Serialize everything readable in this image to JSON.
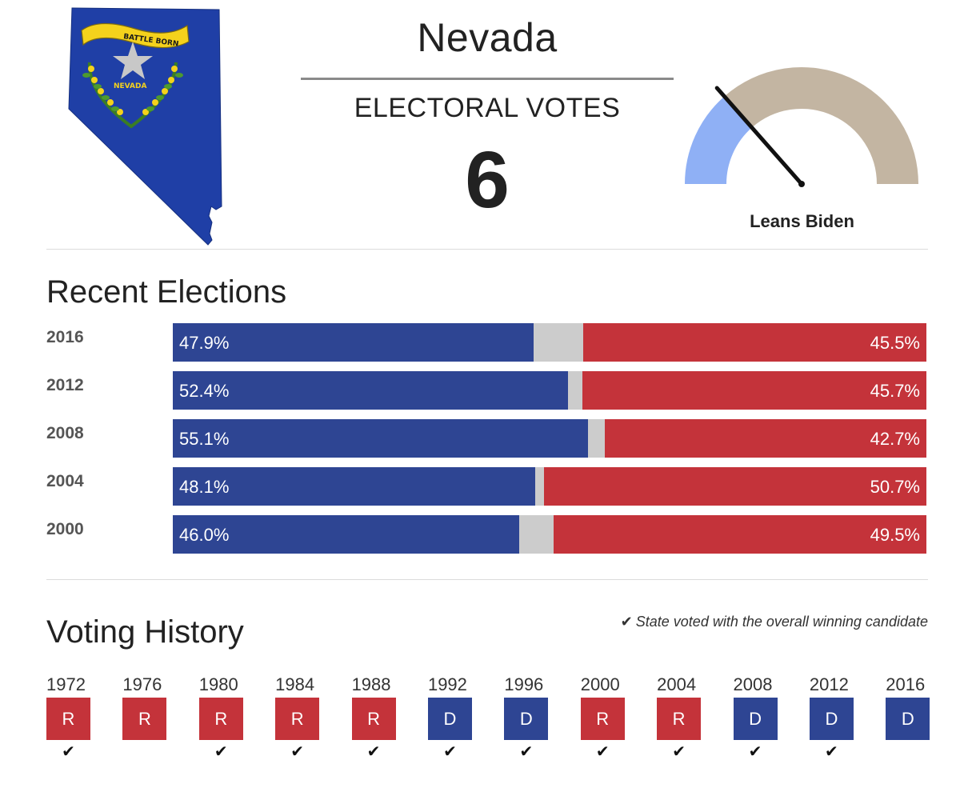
{
  "header": {
    "state_name": "Nevada",
    "electoral_label": "ELECTORAL VOTES",
    "electoral_votes": "6",
    "flag_banner_text": "BATTLE BORN",
    "flag_state_text": "NEVADA",
    "gauge_label": "Leans Biden",
    "gauge_needle_fraction": 0.27
  },
  "colors": {
    "democrat": "#2e4593",
    "republican": "#c4333a",
    "other": "#cccccc",
    "gauge_dem": "#8fb0f5",
    "gauge_rep": "#c3b5a2"
  },
  "recent_elections": {
    "title": "Recent Elections",
    "rows": [
      {
        "year": "2016",
        "dem_pct": "47.9%",
        "rep_pct": "45.5%",
        "dem": 47.9,
        "rep": 45.5
      },
      {
        "year": "2012",
        "dem_pct": "52.4%",
        "rep_pct": "45.7%",
        "dem": 52.4,
        "rep": 45.7
      },
      {
        "year": "2008",
        "dem_pct": "55.1%",
        "rep_pct": "42.7%",
        "dem": 55.1,
        "rep": 42.7
      },
      {
        "year": "2004",
        "dem_pct": "48.1%",
        "rep_pct": "50.7%",
        "dem": 48.1,
        "rep": 50.7
      },
      {
        "year": "2000",
        "dem_pct": "46.0%",
        "rep_pct": "49.5%",
        "dem": 46.0,
        "rep": 49.5
      }
    ]
  },
  "voting_history": {
    "title": "Voting History",
    "legend_icon": "check-icon",
    "legend_text": "State voted with the overall winning candidate",
    "items": [
      {
        "year": "1972",
        "party": "R",
        "with_winner": true
      },
      {
        "year": "1976",
        "party": "R",
        "with_winner": false
      },
      {
        "year": "1980",
        "party": "R",
        "with_winner": true
      },
      {
        "year": "1984",
        "party": "R",
        "with_winner": true
      },
      {
        "year": "1988",
        "party": "R",
        "with_winner": true
      },
      {
        "year": "1992",
        "party": "D",
        "with_winner": true
      },
      {
        "year": "1996",
        "party": "D",
        "with_winner": true
      },
      {
        "year": "2000",
        "party": "R",
        "with_winner": true
      },
      {
        "year": "2004",
        "party": "R",
        "with_winner": true
      },
      {
        "year": "2008",
        "party": "D",
        "with_winner": true
      },
      {
        "year": "2012",
        "party": "D",
        "with_winner": true
      },
      {
        "year": "2016",
        "party": "D",
        "with_winner": false
      }
    ]
  }
}
